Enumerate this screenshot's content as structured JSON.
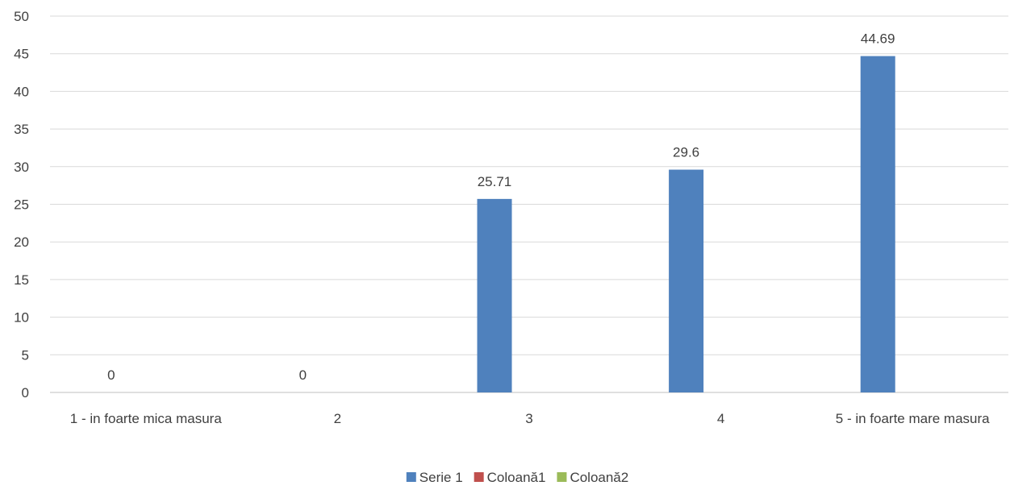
{
  "chart_data": {
    "type": "bar",
    "categories": [
      "1 - in foarte mica masura",
      "2",
      "3",
      "4",
      "5 - in foarte mare masura"
    ],
    "series": [
      {
        "name": "Serie 1",
        "color": "#4F81BD",
        "values": [
          0,
          0,
          25.71,
          29.6,
          44.69
        ],
        "data_labels": [
          "0",
          "0",
          "25.71",
          "29.6",
          "44.69"
        ]
      },
      {
        "name": "Coloană1",
        "color": "#C0504D",
        "values": [
          null,
          null,
          null,
          null,
          null
        ]
      },
      {
        "name": "Coloană2",
        "color": "#9BBB59",
        "values": [
          null,
          null,
          null,
          null,
          null
        ]
      }
    ],
    "ylim": [
      0,
      50
    ],
    "yticks": [
      0,
      5,
      10,
      15,
      20,
      25,
      30,
      35,
      40,
      45,
      50
    ],
    "grid": true,
    "legend_position": "bottom-center",
    "title": "",
    "xlabel": "",
    "ylabel": ""
  }
}
